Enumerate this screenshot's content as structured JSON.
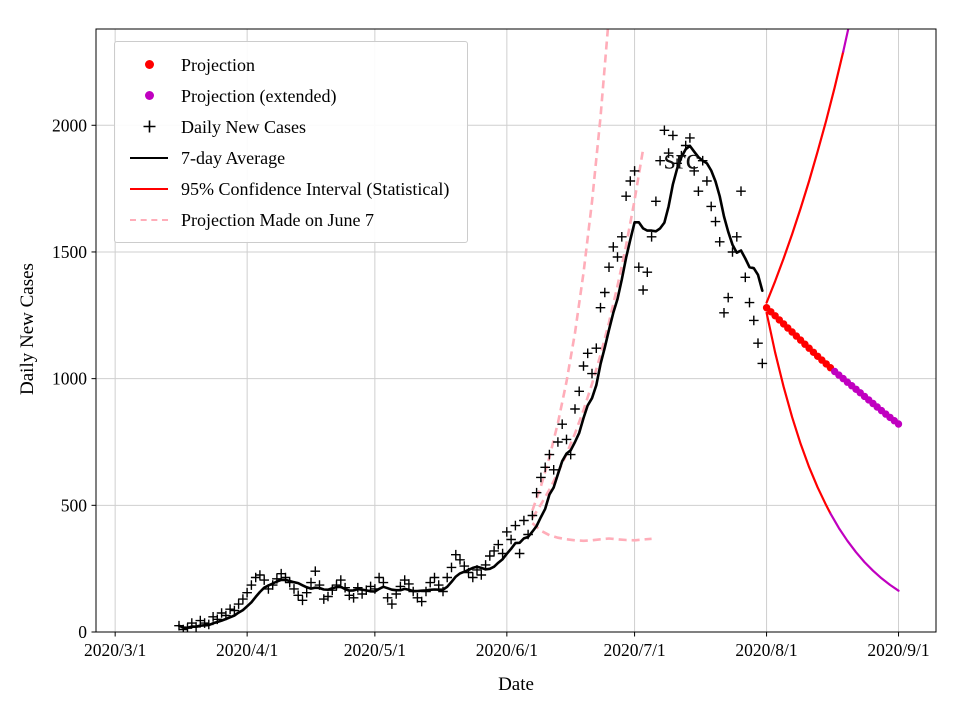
{
  "figure": {
    "grid_color": "#cfcfcf",
    "axis_color": "#000000",
    "background": "#ffffff"
  },
  "legend": {
    "items": [
      {
        "label": "Projection",
        "type": "dot",
        "color": "#ff0000"
      },
      {
        "label": "Projection (extended)",
        "type": "dot",
        "color": "#c000c0"
      },
      {
        "label": "Daily New Cases",
        "type": "plus",
        "color": "#000000"
      },
      {
        "label": "7-day Average",
        "type": "line",
        "color": "#000000"
      },
      {
        "label": "95% Confidence Interval (Statistical)",
        "type": "line",
        "color": "#ff0000"
      },
      {
        "label": "Projection Made on June 7",
        "type": "dashed",
        "color": "#ffadb9"
      }
    ]
  },
  "chart_data": {
    "type": "line",
    "title": "",
    "xlabel": "Date",
    "ylabel": "Daily New Cases",
    "x_ticks": [
      "2020/3/1",
      "2020/4/1",
      "2020/5/1",
      "2020/6/1",
      "2020/7/1",
      "2020/8/1",
      "2020/9/1"
    ],
    "y_ticks": [
      0,
      500,
      1000,
      1500,
      2000
    ],
    "xlim_days": [
      -4.5,
      192.8
    ],
    "ylim": [
      0,
      2380
    ],
    "grid": true,
    "legend_position": "upper-left",
    "annotation": {
      "text": "src",
      "date": "7/12",
      "value": 1830
    },
    "series": [
      {
        "id": "june7_upper",
        "name": "Projection Made on June 7 (upper)",
        "style": "dashed",
        "color": "#ffadb9",
        "width": 2.6,
        "points": [
          [
            "6/7",
            480
          ],
          [
            "6/9",
            575
          ],
          [
            "6/11",
            689
          ],
          [
            "6/13",
            825
          ],
          [
            "6/15",
            988
          ],
          [
            "6/17",
            1181
          ],
          [
            "6/19",
            1417
          ],
          [
            "6/21",
            1698
          ],
          [
            "6/23",
            2032
          ],
          [
            "6/25",
            2434
          ]
        ]
      },
      {
        "id": "june7_central",
        "name": "Projection Made on June 7 (central)",
        "style": "dashed",
        "color": "#ffadb9",
        "width": 2.6,
        "points": [
          [
            "6/7",
            450
          ],
          [
            "6/9",
            503
          ],
          [
            "6/11",
            562
          ],
          [
            "6/13",
            628
          ],
          [
            "6/15",
            702
          ],
          [
            "6/17",
            784
          ],
          [
            "6/19",
            876
          ],
          [
            "6/21",
            979
          ],
          [
            "6/23",
            1094
          ],
          [
            "6/25",
            1222
          ],
          [
            "6/27",
            1366
          ],
          [
            "6/29",
            1526
          ],
          [
            "7/1",
            1705
          ],
          [
            "7/3",
            1905
          ]
        ]
      },
      {
        "id": "june7_lower",
        "name": "Projection Made on June 7 (lower)",
        "style": "dashed",
        "color": "#ffadb9",
        "width": 2.6,
        "points": [
          [
            "6/7",
            430
          ],
          [
            "6/9",
            400
          ],
          [
            "6/11",
            382
          ],
          [
            "6/13",
            372
          ],
          [
            "6/15",
            366
          ],
          [
            "6/17",
            362
          ],
          [
            "6/19",
            360
          ],
          [
            "6/21",
            362
          ],
          [
            "6/23",
            366
          ],
          [
            "6/25",
            369
          ],
          [
            "6/27",
            366
          ],
          [
            "6/29",
            363
          ],
          [
            "7/1",
            362
          ],
          [
            "7/3",
            365
          ],
          [
            "7/5",
            368
          ]
        ]
      },
      {
        "id": "daily",
        "name": "Daily New Cases",
        "style": "plus",
        "color": "#000000",
        "points": [
          [
            "3/16",
            25
          ],
          [
            "3/17",
            10
          ],
          [
            "3/18",
            15
          ],
          [
            "3/19",
            35
          ],
          [
            "3/20",
            20
          ],
          [
            "3/21",
            45
          ],
          [
            "3/22",
            35
          ],
          [
            "3/23",
            30
          ],
          [
            "3/24",
            60
          ],
          [
            "3/25",
            50
          ],
          [
            "3/26",
            75
          ],
          [
            "3/27",
            65
          ],
          [
            "3/28",
            90
          ],
          [
            "3/29",
            85
          ],
          [
            "3/30",
            110
          ],
          [
            "3/31",
            130
          ],
          [
            "4/1",
            155
          ],
          [
            "4/2",
            185
          ],
          [
            "4/3",
            215
          ],
          [
            "4/4",
            225
          ],
          [
            "4/5",
            205
          ],
          [
            "4/6",
            170
          ],
          [
            "4/7",
            185
          ],
          [
            "4/8",
            210
          ],
          [
            "4/9",
            230
          ],
          [
            "4/10",
            215
          ],
          [
            "4/11",
            195
          ],
          [
            "4/12",
            170
          ],
          [
            "4/13",
            145
          ],
          [
            "4/14",
            125
          ],
          [
            "4/15",
            155
          ],
          [
            "4/16",
            195
          ],
          [
            "4/17",
            240
          ],
          [
            "4/18",
            185
          ],
          [
            "4/19",
            130
          ],
          [
            "4/20",
            140
          ],
          [
            "4/21",
            165
          ],
          [
            "4/22",
            185
          ],
          [
            "4/23",
            205
          ],
          [
            "4/24",
            175
          ],
          [
            "4/25",
            145
          ],
          [
            "4/26",
            135
          ],
          [
            "4/27",
            175
          ],
          [
            "4/28",
            150
          ],
          [
            "4/29",
            165
          ],
          [
            "4/30",
            180
          ],
          [
            "5/1",
            170
          ],
          [
            "5/2",
            215
          ],
          [
            "5/3",
            195
          ],
          [
            "5/4",
            135
          ],
          [
            "5/5",
            110
          ],
          [
            "5/6",
            150
          ],
          [
            "5/7",
            180
          ],
          [
            "5/8",
            205
          ],
          [
            "5/9",
            190
          ],
          [
            "5/10",
            160
          ],
          [
            "5/11",
            135
          ],
          [
            "5/12",
            120
          ],
          [
            "5/13",
            160
          ],
          [
            "5/14",
            195
          ],
          [
            "5/15",
            215
          ],
          [
            "5/16",
            185
          ],
          [
            "5/17",
            160
          ],
          [
            "5/18",
            215
          ],
          [
            "5/19",
            255
          ],
          [
            "5/20",
            305
          ],
          [
            "5/21",
            285
          ],
          [
            "5/22",
            260
          ],
          [
            "5/23",
            235
          ],
          [
            "5/24",
            215
          ],
          [
            "5/25",
            245
          ],
          [
            "5/26",
            225
          ],
          [
            "5/27",
            265
          ],
          [
            "5/28",
            300
          ],
          [
            "5/29",
            320
          ],
          [
            "5/30",
            345
          ],
          [
            "5/31",
            310
          ],
          [
            "6/1",
            395
          ],
          [
            "6/2",
            365
          ],
          [
            "6/3",
            420
          ],
          [
            "6/4",
            310
          ],
          [
            "6/5",
            440
          ],
          [
            "6/6",
            385
          ],
          [
            "6/7",
            460
          ],
          [
            "6/8",
            550
          ],
          [
            "6/9",
            610
          ],
          [
            "6/10",
            650
          ],
          [
            "6/11",
            700
          ],
          [
            "6/12",
            640
          ],
          [
            "6/13",
            750
          ],
          [
            "6/14",
            820
          ],
          [
            "6/15",
            760
          ],
          [
            "6/16",
            700
          ],
          [
            "6/17",
            880
          ],
          [
            "6/18",
            950
          ],
          [
            "6/19",
            1050
          ],
          [
            "6/20",
            1100
          ],
          [
            "6/21",
            1020
          ],
          [
            "6/22",
            1120
          ],
          [
            "6/23",
            1280
          ],
          [
            "6/24",
            1340
          ],
          [
            "6/25",
            1440
          ],
          [
            "6/26",
            1520
          ],
          [
            "6/27",
            1480
          ],
          [
            "6/28",
            1560
          ],
          [
            "6/29",
            1720
          ],
          [
            "6/30",
            1780
          ],
          [
            "7/1",
            1820
          ],
          [
            "7/2",
            1440
          ],
          [
            "7/3",
            1350
          ],
          [
            "7/4",
            1420
          ],
          [
            "7/5",
            1560
          ],
          [
            "7/6",
            1700
          ],
          [
            "7/7",
            1860
          ],
          [
            "7/8",
            1980
          ],
          [
            "7/9",
            1890
          ],
          [
            "7/10",
            1960
          ],
          [
            "7/11",
            1850
          ],
          [
            "7/12",
            1880
          ],
          [
            "7/13",
            1920
          ],
          [
            "7/14",
            1950
          ],
          [
            "7/15",
            1820
          ],
          [
            "7/16",
            1740
          ],
          [
            "7/17",
            1860
          ],
          [
            "7/18",
            1780
          ],
          [
            "7/19",
            1680
          ],
          [
            "7/20",
            1620
          ],
          [
            "7/21",
            1540
          ],
          [
            "7/22",
            1260
          ],
          [
            "7/23",
            1320
          ],
          [
            "7/24",
            1500
          ],
          [
            "7/25",
            1560
          ],
          [
            "7/26",
            1740
          ],
          [
            "7/27",
            1400
          ],
          [
            "7/28",
            1300
          ],
          [
            "7/29",
            1230
          ],
          [
            "7/30",
            1140
          ],
          [
            "7/31",
            1060
          ]
        ]
      },
      {
        "id": "avg",
        "name": "7-day Average",
        "style": "rolling",
        "source": "daily",
        "window": 7,
        "color": "#000000",
        "width": 2.6
      },
      {
        "id": "ci_upper_red",
        "name": "95% Confidence Interval (upper)",
        "style": "line",
        "color": "#ff0000",
        "width": 2.2,
        "points": [
          [
            "8/1",
            1300
          ],
          [
            "8/3",
            1384
          ],
          [
            "8/5",
            1474
          ],
          [
            "8/7",
            1570
          ],
          [
            "8/9",
            1672
          ],
          [
            "8/11",
            1780
          ],
          [
            "8/13",
            1896
          ],
          [
            "8/15",
            2019
          ],
          [
            "8/17",
            2150
          ],
          [
            "8/19",
            2290
          ]
        ]
      },
      {
        "id": "ci_upper_ext",
        "name": "95% Confidence Interval (upper, extended)",
        "style": "line",
        "color": "#c000c0",
        "width": 2.2,
        "points": [
          [
            "8/19",
            2290
          ],
          [
            "8/20",
            2365
          ],
          [
            "8/21",
            2440
          ],
          [
            "8/22",
            2520
          ]
        ]
      },
      {
        "id": "ci_lower_red",
        "name": "95% Confidence Interval (lower)",
        "style": "line",
        "color": "#ff0000",
        "width": 2.2,
        "points": [
          [
            "8/1",
            1260
          ],
          [
            "8/3",
            1104
          ],
          [
            "8/5",
            968
          ],
          [
            "8/7",
            848
          ],
          [
            "8/9",
            743
          ],
          [
            "8/11",
            651
          ],
          [
            "8/13",
            571
          ],
          [
            "8/15",
            500
          ],
          [
            "8/16",
            468
          ]
        ]
      },
      {
        "id": "ci_lower_ext",
        "name": "95% Confidence Interval (lower, extended)",
        "style": "line",
        "color": "#c000c0",
        "width": 2.2,
        "points": [
          [
            "8/16",
            468
          ],
          [
            "8/18",
            410
          ],
          [
            "8/20",
            360
          ],
          [
            "8/22",
            315
          ],
          [
            "8/24",
            276
          ],
          [
            "8/26",
            242
          ],
          [
            "8/28",
            212
          ],
          [
            "8/30",
            186
          ],
          [
            "9/1",
            163
          ]
        ]
      },
      {
        "id": "proj",
        "name": "Projection",
        "style": "dots",
        "color": "#ff0000",
        "points": [
          [
            "8/1",
            1280
          ],
          [
            "8/2",
            1264
          ],
          [
            "8/3",
            1248
          ],
          [
            "8/4",
            1232
          ],
          [
            "8/5",
            1216
          ],
          [
            "8/6",
            1200
          ],
          [
            "8/7",
            1184
          ],
          [
            "8/8",
            1168
          ],
          [
            "8/9",
            1152
          ],
          [
            "8/10",
            1136
          ],
          [
            "8/11",
            1120
          ],
          [
            "8/12",
            1104
          ],
          [
            "8/13",
            1088
          ],
          [
            "8/14",
            1073
          ],
          [
            "8/15",
            1058
          ],
          [
            "8/16",
            1043
          ]
        ]
      },
      {
        "id": "proj_ext",
        "name": "Projection (extended)",
        "style": "dots",
        "color": "#c000c0",
        "points": [
          [
            "8/17",
            1028
          ],
          [
            "8/18",
            1014
          ],
          [
            "8/19",
            1000
          ],
          [
            "8/20",
            986
          ],
          [
            "8/21",
            972
          ],
          [
            "8/22",
            958
          ],
          [
            "8/23",
            944
          ],
          [
            "8/24",
            930
          ],
          [
            "8/25",
            916
          ],
          [
            "8/26",
            902
          ],
          [
            "8/27",
            888
          ],
          [
            "8/28",
            874
          ],
          [
            "8/29",
            860
          ],
          [
            "8/30",
            847
          ],
          [
            "8/31",
            834
          ],
          [
            "9/1",
            821
          ]
        ]
      }
    ]
  }
}
